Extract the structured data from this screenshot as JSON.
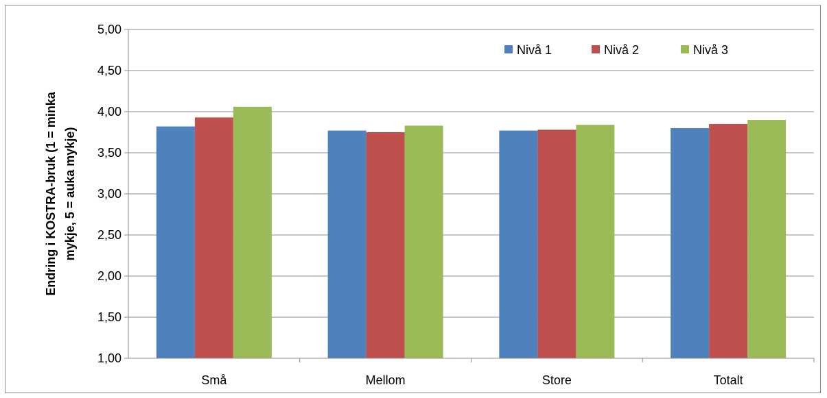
{
  "chart_data": {
    "type": "bar",
    "categories": [
      "Små",
      "Mellom",
      "Store",
      "Totalt"
    ],
    "series": [
      {
        "name": "Nivå 1",
        "color": "#4f81bd",
        "values": [
          3.82,
          3.77,
          3.77,
          3.8
        ]
      },
      {
        "name": "Nivå 2",
        "color": "#c0504d",
        "values": [
          3.93,
          3.75,
          3.78,
          3.85
        ]
      },
      {
        "name": "Nivå 3",
        "color": "#9bbb59",
        "values": [
          4.06,
          3.83,
          3.84,
          3.9
        ]
      }
    ],
    "title": "",
    "xlabel": "",
    "ylabel_lines": [
      "Endring i KOSTRA-bruk (1 = minka",
      "mykje, 5 = auka mykje)"
    ],
    "ylim": [
      1.0,
      5.0
    ],
    "yticks": [
      "1,00",
      "1,50",
      "2,00",
      "2,50",
      "3,00",
      "3,50",
      "4,00",
      "4,50",
      "5,00"
    ],
    "grid": true,
    "legend_position": "top-right"
  }
}
